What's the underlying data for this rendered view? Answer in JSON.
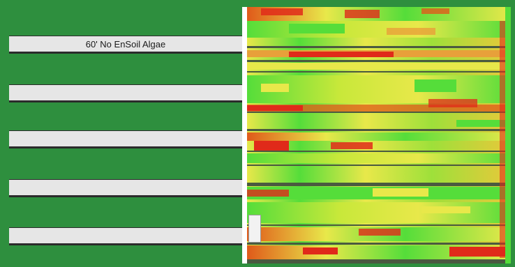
{
  "strips": [
    {
      "label": "60' No EnSoil Algae"
    },
    {
      "label": ""
    },
    {
      "label": ""
    },
    {
      "label": ""
    },
    {
      "label": ""
    }
  ],
  "map": {
    "description_colors": {
      "background_green": "#2e8f3e",
      "strip_gray": "#e6e6e6",
      "map_red": "#e02a1a",
      "map_yellow": "#e8e84a",
      "map_green": "#55dd3a",
      "map_gap": "#4a5a40"
    }
  }
}
